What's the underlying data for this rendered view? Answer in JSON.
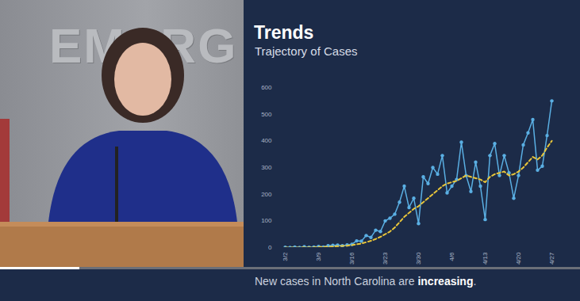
{
  "chart_data": {
    "type": "line",
    "title": "Trends",
    "subtitle": "Trajectory of Cases",
    "caption": [
      "New cases in North Carolina are ",
      "increasing",
      "."
    ],
    "categories": [
      "3/2",
      null,
      null,
      null,
      null,
      null,
      null,
      "3/9",
      null,
      null,
      null,
      null,
      null,
      null,
      "3/16",
      null,
      null,
      null,
      null,
      null,
      null,
      "3/23",
      null,
      null,
      null,
      null,
      null,
      null,
      "3/30",
      null,
      null,
      null,
      null,
      null,
      null,
      "4/6",
      null,
      null,
      null,
      null,
      null,
      null,
      "4/13",
      null,
      null,
      null,
      null,
      null,
      null,
      "4/20",
      null,
      null,
      null,
      null,
      null,
      null,
      "4/27"
    ],
    "series": [
      {
        "color": "#5aafe3",
        "marker": "circle",
        "line_style": "solid",
        "values": [
          1,
          0,
          2,
          0,
          3,
          1,
          2,
          4,
          2,
          7,
          8,
          9,
          7,
          10,
          12,
          25,
          24,
          45,
          38,
          65,
          60,
          100,
          110,
          125,
          170,
          230,
          150,
          185,
          90,
          265,
          240,
          300,
          275,
          345,
          205,
          230,
          255,
          395,
          270,
          210,
          320,
          230,
          105,
          345,
          390,
          270,
          345,
          280,
          185,
          270,
          385,
          430,
          480,
          290,
          305,
          420,
          550
        ]
      },
      {
        "color": "#e8c53a",
        "line_style": "dashed",
        "values": [
          0,
          0,
          0,
          0,
          1,
          1,
          1,
          2,
          2,
          3,
          4,
          5,
          6,
          7,
          9,
          12,
          15,
          20,
          25,
          32,
          40,
          50,
          60,
          75,
          95,
          115,
          130,
          145,
          155,
          170,
          185,
          200,
          215,
          230,
          240,
          245,
          250,
          260,
          270,
          265,
          260,
          255,
          245,
          265,
          275,
          280,
          285,
          270,
          275,
          285,
          300,
          320,
          340,
          330,
          345,
          375,
          400
        ]
      }
    ],
    "ylim": [
      0,
      600
    ],
    "yticks": [
      0,
      100,
      200,
      300,
      400,
      500,
      600
    ],
    "grid": false
  },
  "background": {
    "wall_text": "EMERG"
  }
}
